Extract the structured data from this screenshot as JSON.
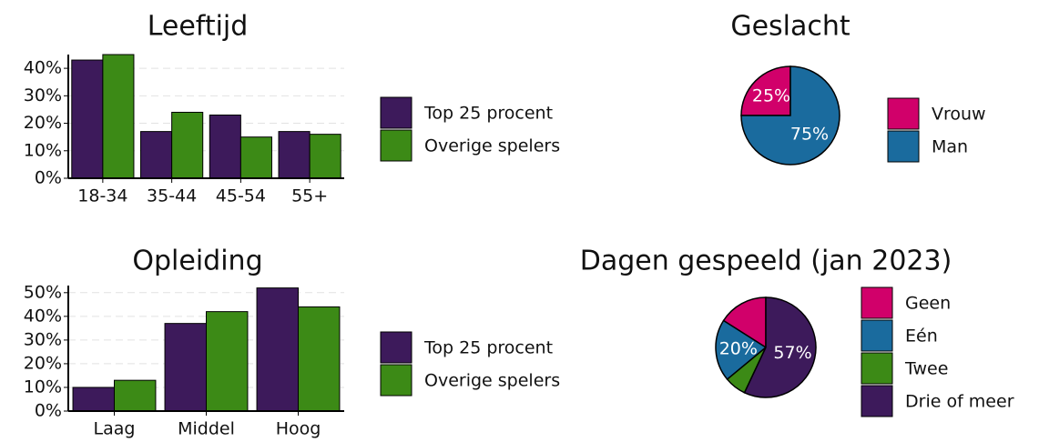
{
  "chart_data": [
    {
      "type": "bar",
      "title": "Leeftijd",
      "categories": [
        "18-34",
        "35-44",
        "45-54",
        "55+"
      ],
      "series": [
        {
          "name": "Top 25 procent",
          "color": "#3d1a5b",
          "values": [
            43,
            17,
            23,
            17
          ]
        },
        {
          "name": "Overige spelers",
          "color": "#3c8a16",
          "values": [
            45,
            24,
            15,
            16
          ]
        }
      ],
      "ylim": [
        0,
        45
      ],
      "yticks": [
        {
          "value": 0,
          "label": "0%"
        },
        {
          "value": 10,
          "label": "10%"
        },
        {
          "value": 20,
          "label": "20%"
        },
        {
          "value": 30,
          "label": "30%"
        },
        {
          "value": 40,
          "label": "40%"
        }
      ],
      "grid": true
    },
    {
      "type": "pie",
      "title": "Geslacht",
      "categories": [
        "Vrouw",
        "Man"
      ],
      "values": [
        25,
        75
      ],
      "value_labels": [
        "25%",
        "75%"
      ],
      "colors": [
        "#d1006a",
        "#1a6b9e"
      ]
    },
    {
      "type": "bar",
      "title": "Opleiding",
      "categories": [
        "Laag",
        "Middel",
        "Hoog"
      ],
      "series": [
        {
          "name": "Top 25 procent",
          "color": "#3d1a5b",
          "values": [
            10,
            37,
            52
          ]
        },
        {
          "name": "Overige spelers",
          "color": "#3c8a16",
          "values": [
            13,
            42,
            44
          ]
        }
      ],
      "ylim": [
        0,
        53
      ],
      "yticks": [
        {
          "value": 0,
          "label": "0%"
        },
        {
          "value": 10,
          "label": "10%"
        },
        {
          "value": 20,
          "label": "20%"
        },
        {
          "value": 30,
          "label": "30%"
        },
        {
          "value": 40,
          "label": "40%"
        },
        {
          "value": 50,
          "label": "50%"
        }
      ],
      "grid": true
    },
    {
      "type": "pie",
      "title": "Dagen gespeeld (jan 2023)",
      "categories": [
        "Geen",
        "Eén",
        "Twee",
        "Drie of meer"
      ],
      "values": [
        16,
        20,
        7,
        57
      ],
      "value_labels": [
        null,
        "20%",
        null,
        "57%"
      ],
      "colors": [
        "#d1006a",
        "#1a6b9e",
        "#3c8a16",
        "#3d1a5b"
      ]
    }
  ]
}
